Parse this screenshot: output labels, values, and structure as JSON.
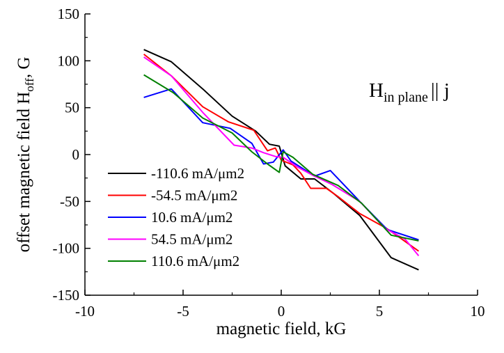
{
  "chart_data": {
    "type": "line",
    "title": "",
    "xlabel": "magnetic field, kG",
    "ylabel_main": "offset magnetic field H",
    "ylabel_sub": "off",
    "ylabel_tail": ", G",
    "xlim": [
      -10,
      10
    ],
    "ylim": [
      -150,
      150
    ],
    "x_ticks": [
      -10,
      -5,
      0,
      5,
      10
    ],
    "y_ticks": [
      -150,
      -100,
      -50,
      0,
      50,
      100,
      150
    ],
    "x_tick_labels": [
      "-10",
      "-5",
      "0",
      "5",
      "10"
    ],
    "y_tick_labels": [
      "-150",
      "-100",
      "-50",
      "0",
      "50",
      "100",
      "150"
    ],
    "grid": false,
    "legend_position": "bottom-left",
    "annotation": {
      "main": "H",
      "sub": "in plane",
      "tail": "|| j"
    },
    "series": [
      {
        "name": "-110.6 mA/μm2",
        "color": "#000000",
        "points": [
          [
            -7,
            112
          ],
          [
            -5.6,
            99
          ],
          [
            -4,
            70
          ],
          [
            -2.5,
            41
          ],
          [
            -1.3,
            25
          ],
          [
            -0.6,
            11
          ],
          [
            -0.1,
            9
          ],
          [
            0.2,
            -12
          ],
          [
            1,
            -26
          ],
          [
            1.7,
            -26
          ],
          [
            2.7,
            -42
          ],
          [
            4,
            -65
          ],
          [
            5.6,
            -110
          ],
          [
            7,
            -123
          ]
        ]
      },
      {
        "name": "-54.5 mA/μm2",
        "color": "#ff0000",
        "points": [
          [
            -7,
            107
          ],
          [
            -5.6,
            84
          ],
          [
            -4,
            51
          ],
          [
            -2.7,
            35
          ],
          [
            -1.4,
            26
          ],
          [
            -0.7,
            4
          ],
          [
            -0.3,
            7
          ],
          [
            0,
            -6
          ],
          [
            0.6,
            -11
          ],
          [
            1,
            -20
          ],
          [
            1.5,
            -36
          ],
          [
            2.3,
            -36
          ],
          [
            2.9,
            -45
          ],
          [
            4,
            -63
          ],
          [
            5.3,
            -78
          ],
          [
            5.8,
            -85
          ],
          [
            7,
            -103
          ]
        ]
      },
      {
        "name": "10.6 mA/μm2",
        "color": "#0000ff",
        "points": [
          [
            -7,
            61
          ],
          [
            -5.6,
            70
          ],
          [
            -4,
            34
          ],
          [
            -2.6,
            28
          ],
          [
            -1.5,
            12
          ],
          [
            -0.9,
            -10
          ],
          [
            -0.4,
            -8
          ],
          [
            0.1,
            5
          ],
          [
            0.5,
            -7
          ],
          [
            1.7,
            -23
          ],
          [
            2.5,
            -17
          ],
          [
            4,
            -50
          ],
          [
            5.4,
            -80
          ],
          [
            7,
            -91
          ]
        ]
      },
      {
        "name": "54.5 mA/μm2",
        "color": "#ff00ff",
        "points": [
          [
            -7,
            104
          ],
          [
            -5.6,
            84
          ],
          [
            -4,
            45
          ],
          [
            -2.4,
            10
          ],
          [
            -1.5,
            7
          ],
          [
            -0.9,
            2
          ],
          [
            -0.3,
            -2
          ],
          [
            0.1,
            -3
          ],
          [
            0.8,
            -13
          ],
          [
            1.6,
            -22
          ],
          [
            2.6,
            -32
          ],
          [
            4,
            -50
          ],
          [
            5.3,
            -79
          ],
          [
            6.3,
            -90
          ],
          [
            7,
            -108
          ]
        ]
      },
      {
        "name": "110.6 mA/μm2",
        "color": "#008000",
        "points": [
          [
            -7,
            85
          ],
          [
            -5.5,
            66
          ],
          [
            -4,
            39
          ],
          [
            -2.5,
            23
          ],
          [
            -1.5,
            3
          ],
          [
            -0.7,
            -10
          ],
          [
            -0.1,
            -19
          ],
          [
            0.1,
            3
          ],
          [
            0.6,
            -3
          ],
          [
            1.6,
            -21
          ],
          [
            2.9,
            -33
          ],
          [
            4.1,
            -52
          ],
          [
            5.6,
            -86
          ],
          [
            7,
            -92
          ]
        ]
      }
    ]
  }
}
